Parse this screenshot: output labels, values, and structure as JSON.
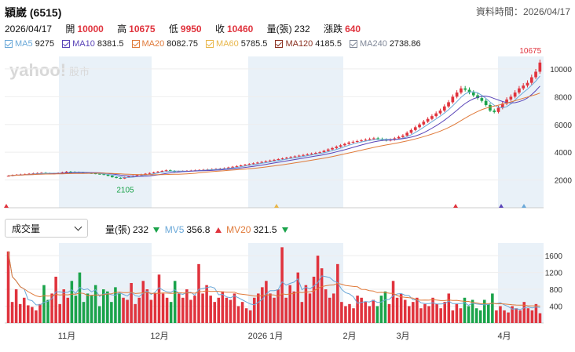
{
  "header": {
    "title": "穎崴 (6515)",
    "data_time_label": "資料時間：",
    "data_time": "2026/04/17"
  },
  "quote": {
    "date": "2026/04/17",
    "open_label": "開",
    "open": "10000",
    "high_label": "高",
    "high": "10675",
    "low_label": "低",
    "low": "9950",
    "close_label": "收",
    "close": "10460",
    "volume_label": "量(張)",
    "volume": "232",
    "change_label": "漲跌",
    "change": "640"
  },
  "ma_legend": [
    {
      "label": "MA5",
      "value": "9275",
      "color": "#6aa8d8"
    },
    {
      "label": "MA10",
      "value": "8381.5",
      "color": "#5a44b8"
    },
    {
      "label": "MA20",
      "value": "8082.75",
      "color": "#e07a3a"
    },
    {
      "label": "MA60",
      "value": "5785.5",
      "color": "#e8b64a"
    },
    {
      "label": "MA120",
      "value": "4185.5",
      "color": "#8a3020"
    },
    {
      "label": "MA240",
      "value": "2738.86",
      "color": "#808898"
    }
  ],
  "watermark": {
    "brand": "yahoo!",
    "section": "股市"
  },
  "volume_panel": {
    "selector_value": "成交量",
    "vol_label": "量(張)",
    "vol_value": "232",
    "mv5_label": "MV5",
    "mv5_value": "356.8",
    "mv20_label": "MV20",
    "mv20_value": "321.5",
    "mv5_color": "#6aa8d8",
    "mv20_color": "#e07a3a"
  },
  "colors": {
    "up": "#e0333d",
    "down": "#1aa34a",
    "band": "#e9f1f8"
  },
  "chart_data": [
    {
      "type": "candlestick",
      "title": "穎崴 (6515)",
      "y_ticks": [
        2000,
        4000,
        6000,
        8000,
        10000
      ],
      "ylim": [
        0,
        10900
      ],
      "annotations": [
        {
          "text": "10675",
          "kind": "high",
          "color": "#e0333d"
        },
        {
          "text": "2105",
          "kind": "low",
          "color": "#1aa34a"
        }
      ],
      "close_series_approx": [
        2300,
        2350,
        2380,
        2400,
        2420,
        2450,
        2480,
        2500,
        2520,
        2480,
        2450,
        2470,
        2500,
        2550,
        2600,
        2580,
        2560,
        2540,
        2520,
        2500,
        2480,
        2450,
        2420,
        2380,
        2300,
        2200,
        2150,
        2105,
        2200,
        2250,
        2300,
        2350,
        2400,
        2450,
        2500,
        2550,
        2600,
        2650,
        2700,
        2650,
        2600,
        2620,
        2640,
        2660,
        2680,
        2700,
        2720,
        2740,
        2760,
        2780,
        2800,
        2820,
        2850,
        2900,
        2950,
        3000,
        3050,
        3100,
        3150,
        3200,
        3250,
        3300,
        3350,
        3400,
        3450,
        3500,
        3550,
        3600,
        3650,
        3700,
        3750,
        3800,
        3850,
        3900,
        3950,
        4000,
        4100,
        4200,
        4300,
        4400,
        4500,
        4600,
        4700,
        4750,
        4800,
        4850,
        4900,
        4950,
        5000,
        4950,
        4900,
        4850,
        4900,
        5000,
        5100,
        5200,
        5400,
        5600,
        5800,
        6000,
        6200,
        6400,
        6600,
        6800,
        7000,
        7300,
        7600,
        8000,
        8300,
        8600,
        8500,
        8300,
        8100,
        7900,
        7700,
        7400,
        7000,
        6900,
        7200,
        7500,
        7800,
        8000,
        8300,
        8600,
        8800,
        9000,
        9400,
        9800,
        10460
      ]
    },
    {
      "type": "bar",
      "title": "成交量",
      "y_ticks": [
        400,
        800,
        1200,
        1600
      ],
      "ylim": [
        0,
        1900
      ],
      "x_tick_labels": [
        "11月",
        "12月",
        "2026 1月",
        "2月",
        "3月",
        "4月"
      ],
      "series": [
        {
          "name": "量(張)",
          "values": [
            1700,
            500,
            800,
            450,
            600,
            420,
            380,
            300,
            450,
            900,
            550,
            700,
            1100,
            450,
            800,
            600,
            1000,
            650,
            1200,
            500,
            700,
            650,
            900,
            400,
            800,
            750,
            500,
            850,
            700,
            600,
            550,
            950,
            450,
            600,
            1000,
            800,
            550,
            700,
            1150,
            700,
            600,
            500,
            1000,
            700,
            600,
            800,
            550,
            650,
            1400,
            700,
            900,
            650,
            500,
            600,
            750,
            600,
            550,
            700,
            400,
            500,
            350,
            300,
            600,
            700,
            850,
            1000,
            700,
            600,
            800,
            1800,
            600,
            900,
            750,
            1200,
            500,
            900,
            700,
            1100,
            1600,
            1300,
            800,
            600,
            700,
            1400,
            500,
            400,
            450,
            350,
            650,
            600,
            500,
            400,
            550,
            400,
            650,
            750,
            450,
            1000,
            600,
            700,
            550,
            400,
            500,
            600,
            350,
            450,
            400,
            600,
            450,
            350,
            500,
            700,
            300,
            450,
            350,
            600,
            400,
            550,
            350,
            300,
            550,
            450,
            700,
            300,
            400,
            300,
            250,
            400,
            350,
            300,
            500,
            350,
            300,
            450,
            232
          ]
        },
        {
          "name": "MV5",
          "values_note": "moving average of volume"
        },
        {
          "name": "MV20",
          "values_note": "moving average of volume"
        }
      ]
    }
  ]
}
